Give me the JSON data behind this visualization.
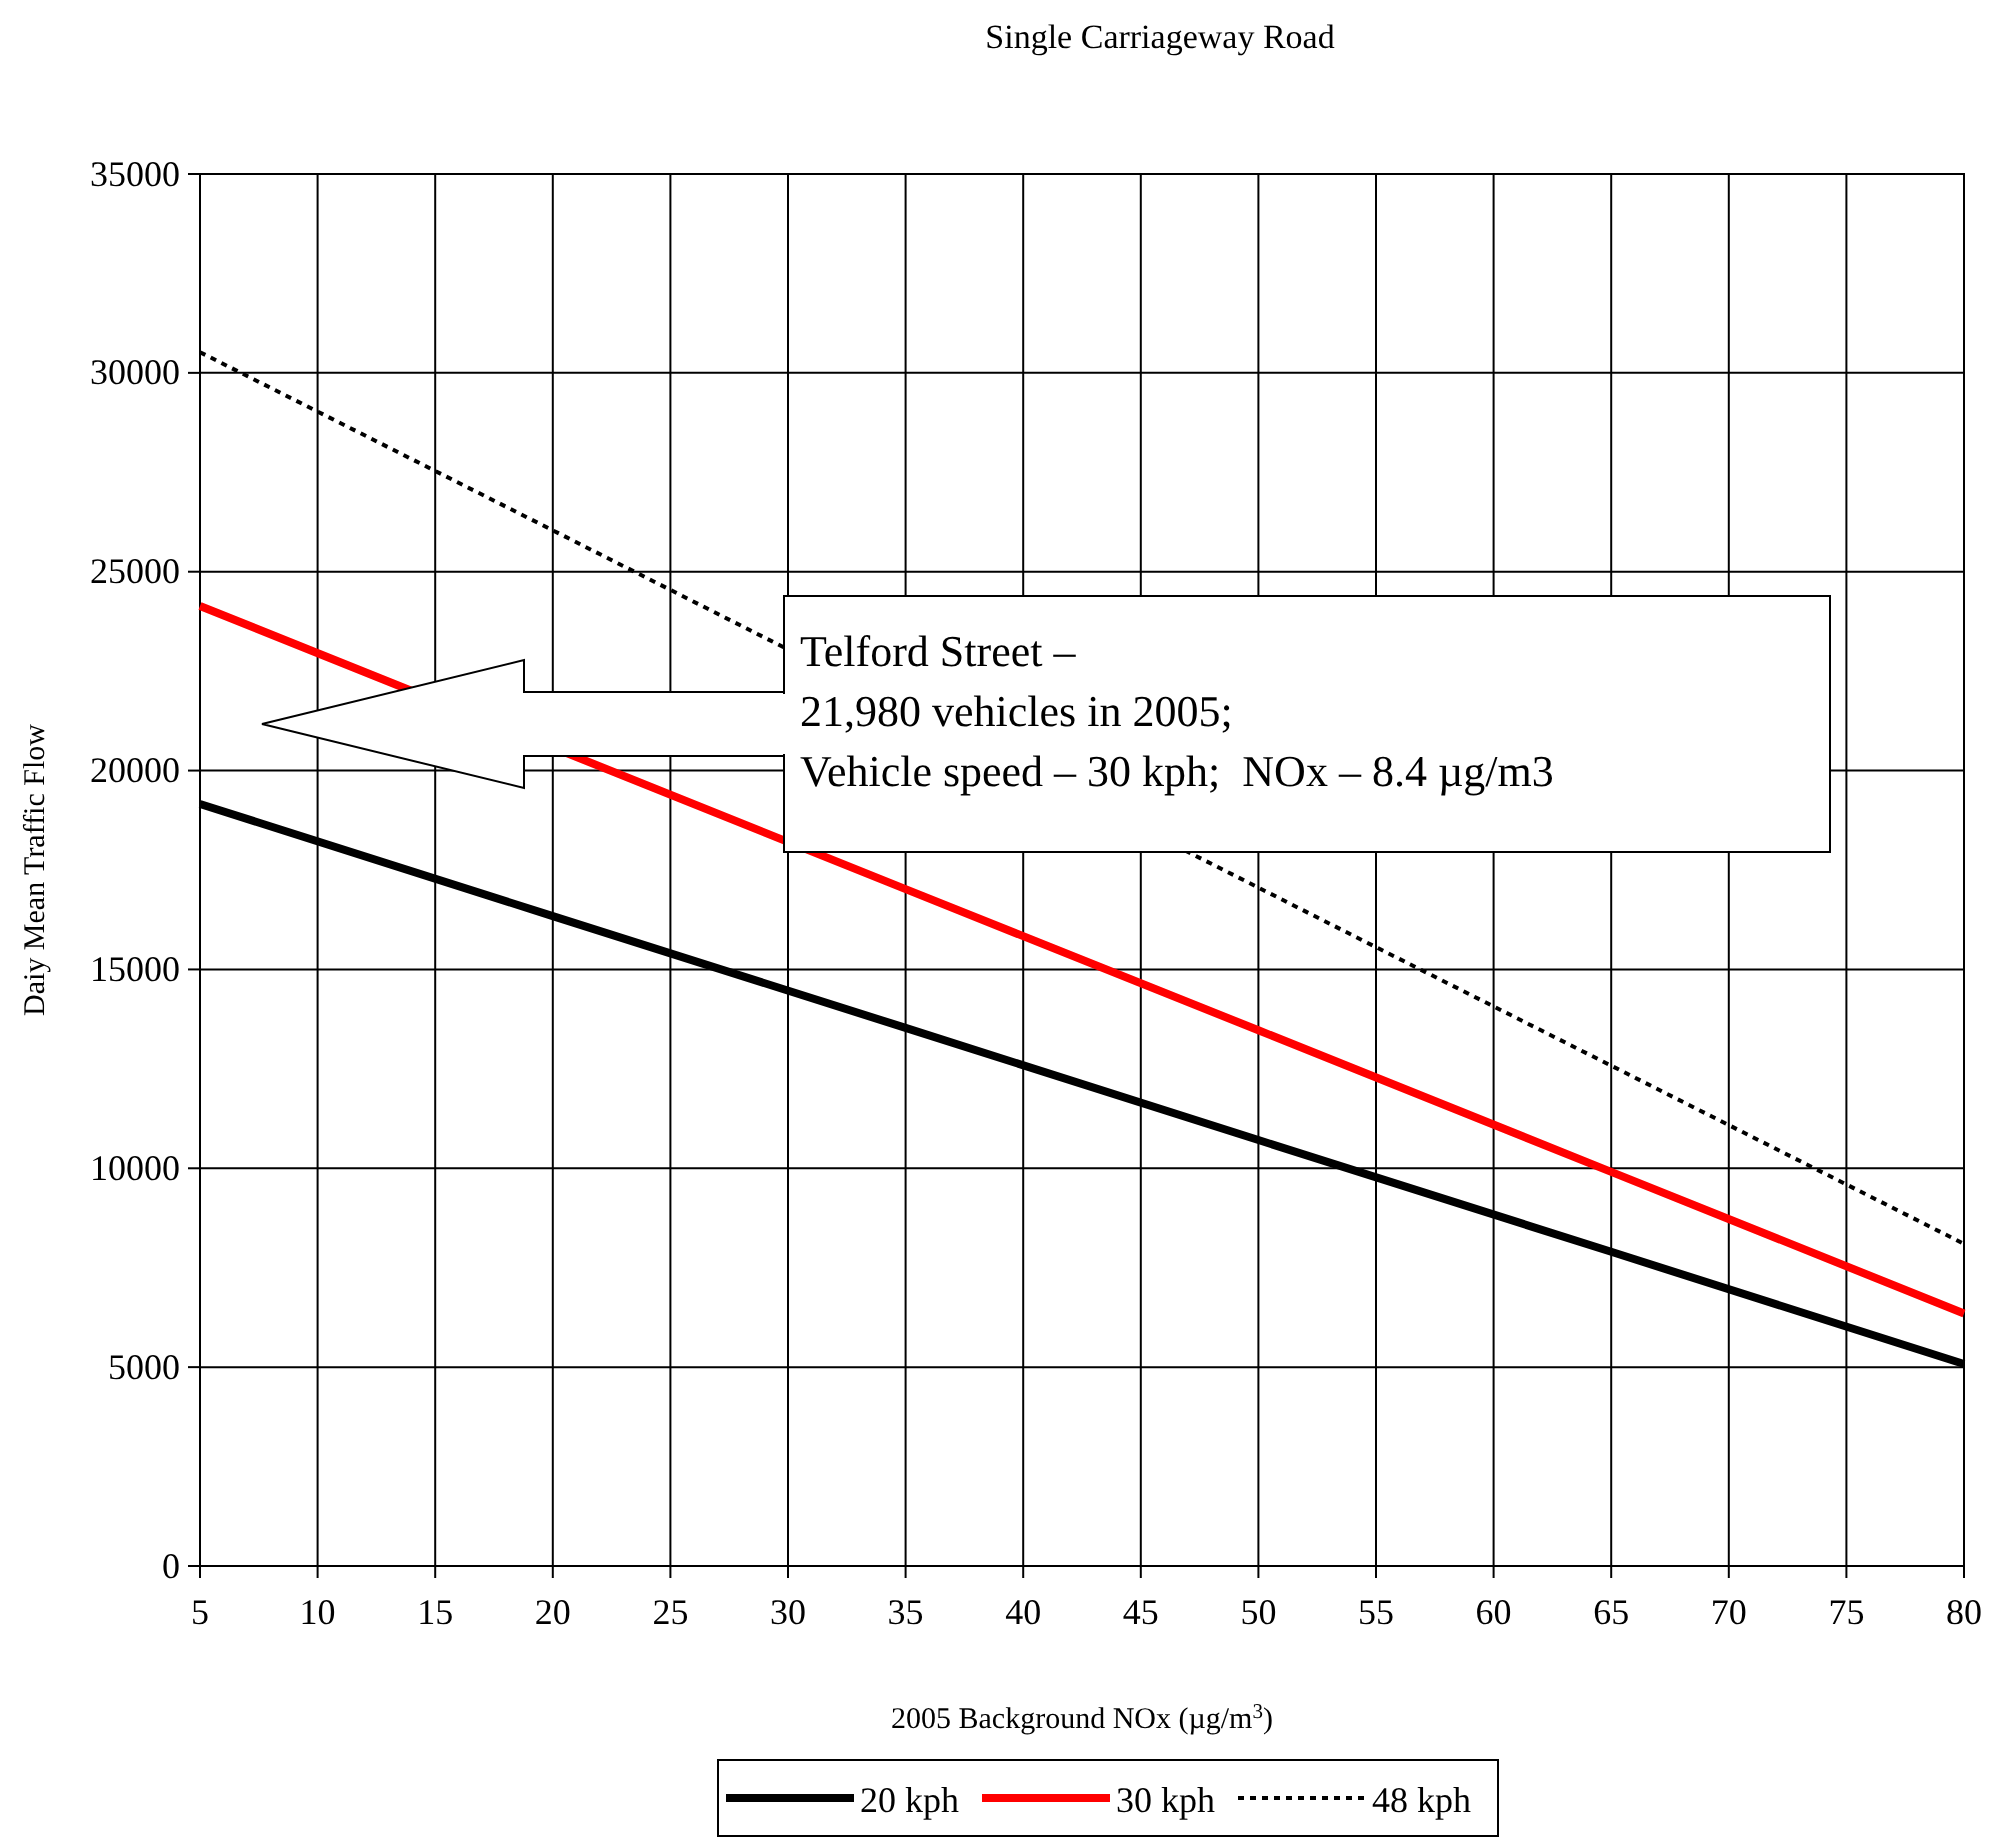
{
  "chart_data": {
    "type": "line",
    "title": "Single Carriageway Road",
    "xlabel": "2005 Background NOx (µg/m$^{3}$)",
    "ylabel": "Daiy Mean Traffic Flow",
    "x": [
      5,
      20,
      35,
      50,
      65,
      80
    ],
    "series": [
      {
        "name": "20 kph",
        "color": "#000000",
        "line_style": "solid",
        "values": [
          19160,
          16340,
          13530,
          10710,
          7900,
          5080
        ]
      },
      {
        "name": "30 kph",
        "color": "#ff0000",
        "line_style": "solid",
        "x": [
          5,
          35,
          50,
          65,
          80
        ],
        "values": [
          24140,
          17020,
          13470,
          9910,
          6350
        ]
      },
      {
        "name": "48 kph",
        "color": "#000000",
        "line_style": "dotted",
        "x": [
          5,
          20,
          55,
          65,
          80
        ],
        "values": [
          30520,
          26040,
          15560,
          12580,
          8100
        ]
      }
    ],
    "xlim": [
      5,
      80
    ],
    "xticks": [
      5,
      10,
      15,
      20,
      25,
      30,
      35,
      40,
      45,
      50,
      55,
      60,
      65,
      70,
      75,
      80
    ],
    "ylim": [
      0,
      35000
    ],
    "yticks": [
      0,
      5000,
      10000,
      15000,
      20000,
      25000,
      30000,
      35000
    ],
    "grid": true,
    "legend": "bottom",
    "marker": "none",
    "annotations": [
      "Telford Street –\n21,980 vehicles in 2005;\nVehicle speed – 30 kph;  NOx – 8.4 µg/m3"
    ]
  }
}
